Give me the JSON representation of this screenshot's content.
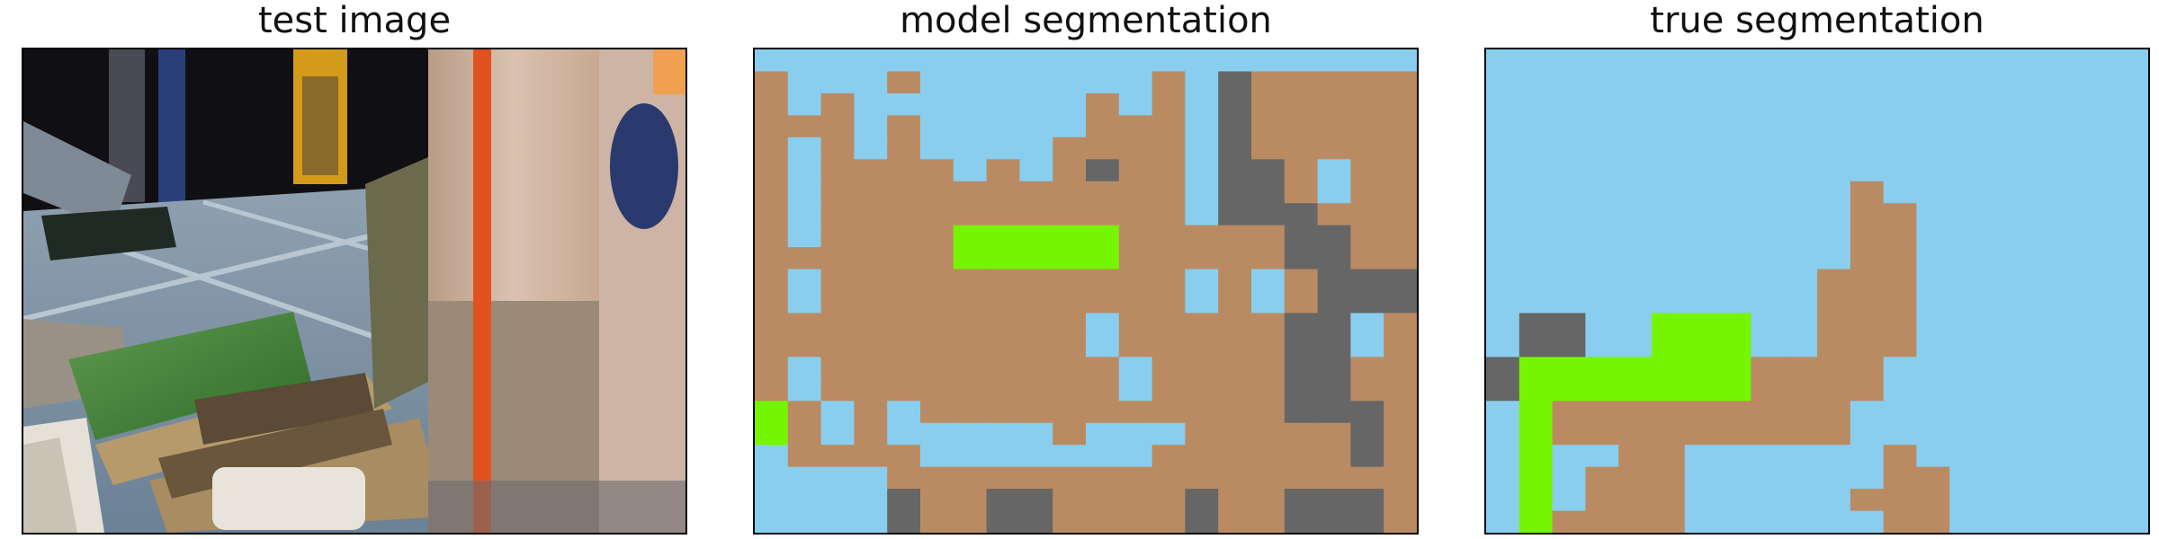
{
  "panels": [
    {
      "title": "test image"
    },
    {
      "title": "model segmentation"
    },
    {
      "title": "true segmentation"
    }
  ],
  "colors": {
    "sky": "#89ceee",
    "soil": "#ba8b63",
    "rock": "#666666",
    "grass": "#76f500"
  },
  "model_grid": [
    "ssssssssssssssssssss",
    "BsssBsssssssBsrBBBBB",
    "BsBsssssssBsBsrBBBBB",
    "BBBsBsssssBBBsrBBBBB",
    "BsBsBssssBBBBsrBBBBB",
    "BsBBBBsBsBrBBsrrBsBB",
    "BsBBBBBBBBBBBsrrBsBB",
    "BsBBBBBBBBBBBsrrrBBB",
    "BsBBBBGGGGGBBBBBrrBB",
    "BBBBBBGGGGGBBBBBrrBB",
    "BsBBBBBBBBBBBsBsBrrr",
    "BsBBBBBBBBBBBsBsBrrr",
    "BBBBBBBBBBsBBBBBrrsB",
    "BBBBBBBBBBsBBBBBrrsB",
    "BsBBBBBBBBBsBBBBrrBB",
    "BsBBBBBBBBBsBBBBrrBB",
    "GBsBsBBBBBBBBBBBrrrB",
    "GBsBsssssBsssBBBBBrB",
    "sBBBBsssssssBBBBBBrB",
    "ssssBBBBBBBBBBBBBBBB",
    "ssssrBBrrBBBBrBBrrrB",
    "ssssrBBrrBBBBrBBrrrB"
  ],
  "truth_grid": [
    "ssssssssssssssssssss",
    "ssssssssssssssssssss",
    "ssssssssssssssssssss",
    "ssssssssssssssssssss",
    "ssssssssssssssssssss",
    "ssssssssssssssssssss",
    "sssssssssssBssssssss",
    "sssssssssssBBsssssss",
    "sssssssssssBBsssssss",
    "sssssssssssBBsssssss",
    "ssssssssssBBBsssssss",
    "ssssssssssBBBsssssss",
    "srrssGGGssBBBsssssss",
    "srrssGGGssBBBsssssss",
    "rGGGGGGGBBBBssssssss",
    "rGGGGGGGBBBBssssssss",
    "sGBBBBBBBBBsssssssss",
    "sGBBBBBBBBBsssssssss",
    "sGssBBssssssBsssssss",
    "sGsBBBssssssBBssssss",
    "sGsBBBsssssBBBssssss",
    "sGBBBBssssssBBssssss"
  ]
}
